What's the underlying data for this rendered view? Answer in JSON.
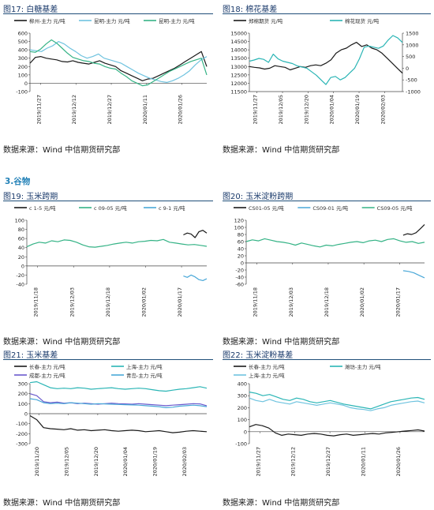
{
  "section_heading": "3.谷物",
  "figures": [
    {
      "key": "f17",
      "title": "图17: 白糖基差",
      "source": "数据来源：Wind  中信期货研究部",
      "chart_data": {
        "type": "line",
        "legend": [
          "柳州-主力 元/吨",
          "昆明-主力 元/吨",
          "昆明-主力 元/吨"
        ],
        "x_ticks": [
          "2019/11/27",
          "2019/12/12",
          "2019/12/27",
          "2020/01/11",
          "2020/01/26"
        ],
        "yleft": {
          "min": -100,
          "max": 600,
          "ticks": [
            "-100",
            "0",
            "100",
            "200",
            "300",
            "400",
            "500",
            "600"
          ]
        },
        "series": [
          {
            "name": "柳州-主力 元/吨",
            "color": "#1a1a1a",
            "axis": "left",
            "values": [
              240,
              310,
              320,
              300,
              290,
              280,
              260,
              255,
              270,
              250,
              240,
              230,
              250,
              270,
              240,
              220,
              200,
              150,
              120,
              90,
              60,
              30,
              50,
              60,
              90,
              120,
              150,
              180,
              220,
              260,
              300,
              340,
              380,
              200
            ]
          },
          {
            "name": "昆明-主力 元/吨",
            "color": "#6fc3df",
            "axis": "left",
            "values": [
              400,
              390,
              380,
              420,
              450,
              500,
              470,
              420,
              380,
              330,
              300,
              320,
              350,
              300,
              280,
              260,
              240,
              200,
              160,
              120,
              90,
              60,
              40,
              20,
              10,
              30,
              60,
              100,
              150,
              220,
              280,
              320
            ]
          },
          {
            "name": "昆明-主力 元/吨",
            "color": "#35b386",
            "axis": "left",
            "values": [
              380,
              370,
              410,
              470,
              520,
              480,
              420,
              360,
              310,
              290,
              270,
              260,
              240,
              230,
              200,
              180,
              170,
              120,
              80,
              30,
              0,
              -30,
              -20,
              20,
              60,
              100,
              140,
              170,
              200,
              230,
              260,
              280,
              300,
              100
            ]
          }
        ]
      }
    },
    {
      "key": "f18",
      "title": "图18: 棉花基差",
      "source": "数据来源：Wind  中信期货研究部",
      "chart_data": {
        "type": "line",
        "legend": [
          "郑棉期货 元/吨",
          "棉花现货 元/吨"
        ],
        "x_ticks": [
          "2019/11/27",
          "2019/12/05",
          "2019/12/20",
          "2020/01/04",
          "2020/01/19",
          "2020/02/03"
        ],
        "yleft": {
          "min": 11500,
          "max": 15000,
          "ticks": [
            "11500",
            "12000",
            "12500",
            "13000",
            "13500",
            "14000",
            "14500",
            "15000"
          ]
        },
        "yright": {
          "min": -1000,
          "max": 1500,
          "ticks": [
            "-1000",
            "-500",
            "0",
            "500",
            "1000",
            "1500"
          ]
        },
        "series": [
          {
            "name": "郑棉期货 元/吨",
            "color": "#1a1a1a",
            "axis": "left",
            "values": [
              13000,
              12950,
              12920,
              12850,
              12900,
              13050,
              13000,
              12950,
              12800,
              12900,
              13000,
              12950,
              13050,
              13100,
              13050,
              13200,
              13400,
              13800,
              14000,
              14100,
              14300,
              14450,
              14200,
              14300,
              14100,
              14000,
              13800,
              13500,
              13200,
              12900,
              12600
            ]
          },
          {
            "name": "棉花现货 元/吨",
            "color": "#2ab5b5",
            "axis": "right",
            "values": [
              300,
              350,
              420,
              380,
              250,
              600,
              400,
              300,
              250,
              200,
              100,
              50,
              0,
              -150,
              -300,
              -500,
              -700,
              -400,
              -350,
              -500,
              -400,
              -200,
              0,
              400,
              900,
              950,
              900,
              850,
              950,
              1200,
              1400,
              1300,
              1100
            ]
          }
        ]
      }
    },
    {
      "key": "f19",
      "title": "图19: 玉米跨期",
      "source": "数据来源：Wind  中信期货研究部",
      "chart_data": {
        "type": "line",
        "legend": [
          "c 1-5  元/吨",
          "c 09-05  元/吨",
          "c 9-1  元/吨"
        ],
        "x_ticks": [
          "2019/11/18",
          "2019/12/03",
          "2019/12/18",
          "2020/01/02",
          "2020/01/17"
        ],
        "yleft": {
          "min": -40,
          "max": 100,
          "ticks": [
            "-40",
            "-20",
            "0",
            "20",
            "40",
            "60",
            "80",
            "100"
          ]
        },
        "series": [
          {
            "name": "c 1-5  元/吨",
            "color": "#1a1a1a",
            "axis": "left",
            "x_from": 0.87,
            "values": [
              68,
              72,
              70,
              62,
              75,
              78,
              72
            ]
          },
          {
            "name": "c 09-05  元/吨",
            "color": "#35b386",
            "axis": "left",
            "values": [
              42,
              48,
              52,
              50,
              55,
              53,
              57,
              56,
              52,
              46,
              42,
              41,
              43,
              45,
              48,
              50,
              52,
              50,
              53,
              54,
              56,
              55,
              58,
              52,
              50,
              48,
              46,
              47,
              45,
              43
            ]
          },
          {
            "name": "c 9-1  元/吨",
            "color": "#4aa8d8",
            "axis": "left",
            "x_from": 0.87,
            "values": [
              -22,
              -25,
              -20,
              -24,
              -30,
              -32,
              -28
            ]
          }
        ]
      }
    },
    {
      "key": "f20",
      "title": "图20: 玉米淀粉跨期",
      "source": "数据来源：Wind  中信期货研究部",
      "chart_data": {
        "type": "line",
        "legend": [
          "CS01-05  元/吨",
          "CS09-01  元/吨",
          "CS09-05  元/吨"
        ],
        "x_ticks": [
          "2019/11/18",
          "2019/12/03",
          "2019/12/18",
          "2020/01/02",
          "2020/01/17"
        ],
        "yleft": {
          "min": -60,
          "max": 120,
          "ticks": [
            "-60",
            "-40",
            "-20",
            "0",
            "20",
            "40",
            "60",
            "80",
            "100",
            "120"
          ]
        },
        "series": [
          {
            "name": "CS01-05  元/吨",
            "color": "#1a1a1a",
            "axis": "left",
            "x_from": 0.88,
            "values": [
              78,
              82,
              80,
              85,
              96,
              108
            ]
          },
          {
            "name": "CS09-01  元/吨",
            "color": "#4aa8d8",
            "axis": "left",
            "x_from": 0.88,
            "values": [
              -22,
              -24,
              -28,
              -35,
              -42
            ]
          },
          {
            "name": "CS09-05  元/吨",
            "color": "#35b386",
            "axis": "left",
            "values": [
              60,
              65,
              62,
              68,
              64,
              60,
              58,
              55,
              50,
              56,
              52,
              48,
              45,
              50,
              48,
              52,
              55,
              58,
              60,
              57,
              62,
              64,
              60,
              66,
              68,
              62,
              58,
              60,
              55,
              58
            ]
          }
        ]
      }
    },
    {
      "key": "f21",
      "title": "图21: 玉米基差",
      "source": "数据来源：Wind  中信期货研究部",
      "chart_data": {
        "type": "line",
        "legend": [
          "长春-主力  元/吨",
          "上海-主力  元/吨",
          "成都-主力  元/吨",
          "青岛-主力  元/吨"
        ],
        "x_ticks": [
          "2019/11/20",
          "2019/12/05",
          "2019/12/20",
          "2020/01/04",
          "2020/01/19",
          "2020/02/03"
        ],
        "yleft": {
          "min": -300,
          "max": 300,
          "ticks": [
            "-300",
            "-200",
            "-100",
            "0",
            "100",
            "200",
            "300"
          ]
        },
        "series": [
          {
            "name": "长春-主力  元/吨",
            "color": "#1a1a1a",
            "axis": "left",
            "values": [
              -20,
              -60,
              -140,
              -150,
              -155,
              -160,
              -150,
              -165,
              -160,
              -170,
              -165,
              -160,
              -170,
              -175,
              -170,
              -165,
              -170,
              -180,
              -175,
              -170,
              -180,
              -190,
              -185,
              -175,
              -170,
              -175,
              -180
            ]
          },
          {
            "name": "上海-主力  元/吨",
            "color": "#2ab5b5",
            "axis": "left",
            "values": [
              310,
              320,
              290,
              260,
              250,
              255,
              250,
              260,
              255,
              245,
              250,
              255,
              260,
              250,
              245,
              250,
              255,
              250,
              240,
              230,
              225,
              235,
              245,
              250,
              260,
              270,
              255
            ]
          },
          {
            "name": "成都-主力  元/吨",
            "color": "#6a5acd",
            "axis": "left",
            "values": [
              200,
              180,
              120,
              110,
              115,
              105,
              110,
              100,
              105,
              100,
              95,
              100,
              105,
              100,
              98,
              95,
              100,
              95,
              90,
              85,
              80,
              85,
              90,
              95,
              100,
              98,
              80
            ]
          },
          {
            "name": "青岛-主力  元/吨",
            "color": "#4aa8d8",
            "axis": "left",
            "values": [
              150,
              140,
              110,
              100,
              105,
              100,
              110,
              105,
              100,
              95,
              100,
              98,
              95,
              92,
              90,
              88,
              85,
              80,
              75,
              70,
              60,
              65,
              75,
              80,
              85,
              80,
              70
            ]
          }
        ]
      }
    },
    {
      "key": "f22",
      "title": "图22: 玉米淀粉基差",
      "source": "数据来源：Wind  中信期货研究部",
      "chart_data": {
        "type": "line",
        "legend": [
          "长春-主力  元/吨",
          "潍坊-主力  元/吨",
          "上海-主力  元/吨"
        ],
        "x_ticks": [
          "2019/11/27",
          "2019/12/12",
          "2019/12/27",
          "2020/01/11",
          "2020/01/26"
        ],
        "yleft": {
          "min": -100,
          "max": 400,
          "ticks": [
            "-100",
            "0",
            "100",
            "200",
            "300",
            "400"
          ]
        },
        "series": [
          {
            "name": "长春-主力  元/吨",
            "color": "#1a1a1a",
            "axis": "left",
            "values": [
              40,
              60,
              50,
              30,
              -10,
              -30,
              -20,
              -25,
              -30,
              -20,
              -15,
              -20,
              -30,
              -35,
              -25,
              -20,
              -30,
              -25,
              -20,
              -15,
              -20,
              -10,
              -5,
              0,
              5,
              10,
              15,
              5
            ]
          },
          {
            "name": "潍坊-主力  元/吨",
            "color": "#2ab5b5",
            "axis": "left",
            "values": [
              330,
              320,
              300,
              310,
              290,
              270,
              260,
              280,
              270,
              250,
              240,
              250,
              260,
              245,
              230,
              220,
              210,
              200,
              190,
              210,
              230,
              250,
              260,
              270,
              280,
              285,
              270
            ]
          },
          {
            "name": "上海-主力  元/吨",
            "color": "#6fc3df",
            "axis": "left",
            "values": [
              280,
              260,
              250,
              270,
              250,
              240,
              230,
              250,
              240,
              230,
              220,
              230,
              240,
              230,
              220,
              200,
              190,
              185,
              175,
              190,
              200,
              220,
              230,
              240,
              250,
              255,
              240
            ]
          }
        ]
      }
    }
  ]
}
